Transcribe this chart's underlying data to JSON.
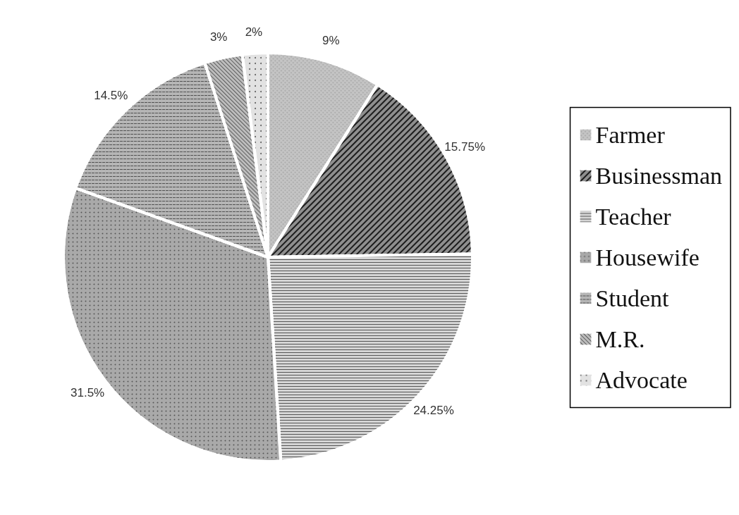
{
  "chart_data": {
    "type": "pie",
    "categories": [
      "Farmer",
      "Businessman",
      "Teacher",
      "Housewife",
      "Student",
      "M.R.",
      "Advocate"
    ],
    "values": [
      9,
      15.75,
      24.25,
      31.5,
      14.5,
      3,
      2
    ],
    "colors": [
      "#c4c4c4",
      "#8e8e8e",
      "#d6d6d6",
      "#a9a9a9",
      "#b5b5b5",
      "#bdbdbd",
      "#e2e2e2"
    ],
    "value_labels": [
      "9%",
      "15.75%",
      "24.25%",
      "31.5%",
      "14.5%",
      "3%",
      "2%"
    ],
    "legend": "right"
  }
}
